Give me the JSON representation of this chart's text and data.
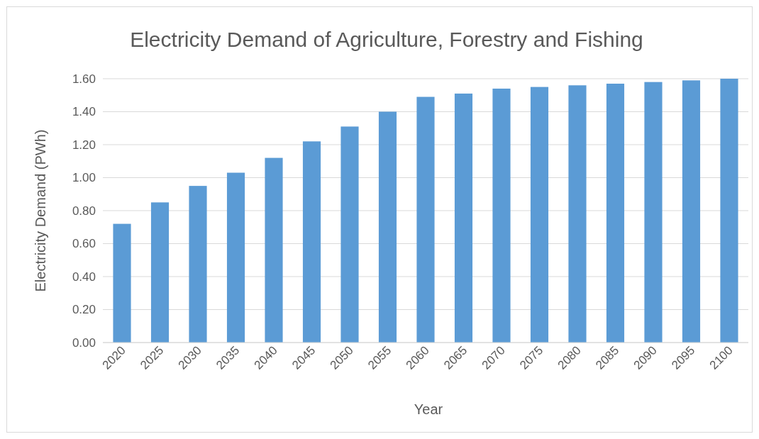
{
  "chart_data": {
    "type": "bar",
    "title": "Electricity Demand of Agriculture, Forestry and Fishing",
    "xlabel": "Year",
    "ylabel": "Electricity Demand  (PWh)",
    "categories": [
      "2020",
      "2025",
      "2030",
      "2035",
      "2040",
      "2045",
      "2050",
      "2055",
      "2060",
      "2065",
      "2070",
      "2075",
      "2080",
      "2085",
      "2090",
      "2095",
      "2100"
    ],
    "values": [
      0.72,
      0.85,
      0.95,
      1.03,
      1.12,
      1.22,
      1.31,
      1.4,
      1.49,
      1.51,
      1.54,
      1.55,
      1.56,
      1.57,
      1.58,
      1.59,
      1.6
    ],
    "color": "#5b9bd5",
    "ylim": [
      0,
      1.6
    ],
    "yticks": [
      {
        "value": 0,
        "label": "0.00"
      },
      {
        "value": 0.2,
        "label": "0.20"
      },
      {
        "value": 0.4,
        "label": "0.40"
      },
      {
        "value": 0.6,
        "label": "0.60"
      },
      {
        "value": 0.8,
        "label": "0.80"
      },
      {
        "value": 1.0,
        "label": "1.00"
      },
      {
        "value": 1.2,
        "label": "1.20"
      },
      {
        "value": 1.4,
        "label": "1.40"
      },
      {
        "value": 1.6,
        "label": "1.60"
      }
    ],
    "grid": "y"
  }
}
